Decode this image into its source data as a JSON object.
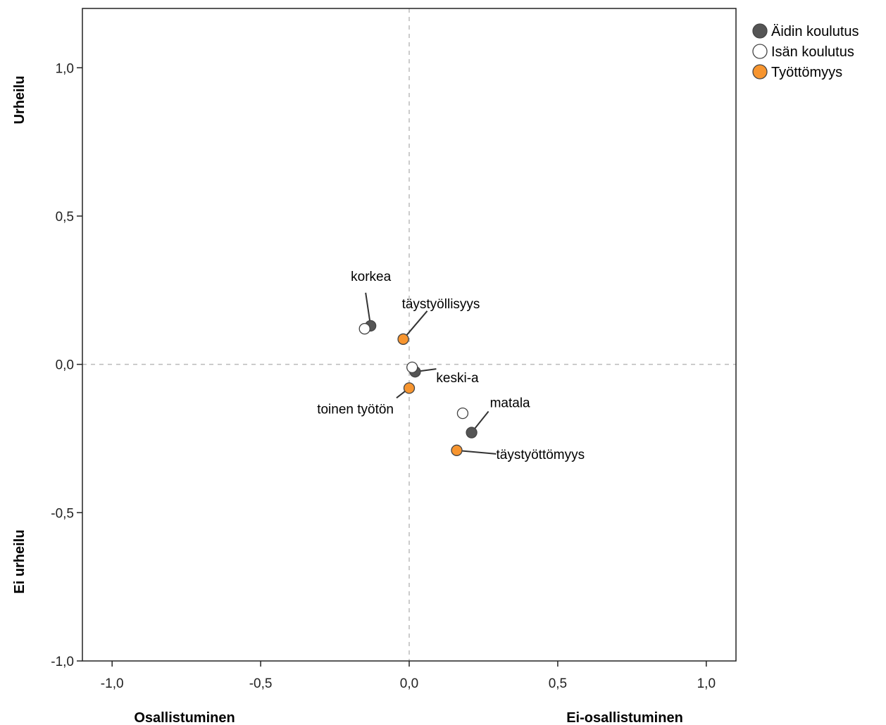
{
  "chart_data": {
    "type": "scatter",
    "xlim": [
      -1.1,
      1.1
    ],
    "ylim": [
      -1.0,
      1.2
    ],
    "x_ticks": [
      -1.0,
      -0.5,
      0.0,
      0.5,
      1.0
    ],
    "y_ticks": [
      -1.0,
      -0.5,
      0.0,
      0.5,
      1.0
    ],
    "x_tick_labels": [
      "-1,0",
      "-0,5",
      "0,0",
      "0,5",
      "1,0"
    ],
    "y_tick_labels": [
      "-1,0",
      "-0,5",
      "0,0",
      "0,5",
      "1,0"
    ],
    "axis_text": {
      "x_left": "Osallistuminen",
      "x_right": "Ei-osallistuminen",
      "y_top": "Urheilu",
      "y_bottom": "Ei urheilu"
    },
    "reference_lines": {
      "x": 0.0,
      "y": 0.0,
      "style": "dashed"
    },
    "legend_position": "top-right",
    "series": [
      {
        "name": "Äidin koulutus",
        "color": "#555555",
        "points": [
          {
            "label": "korkea",
            "x": -0.13,
            "y": 0.13
          },
          {
            "label": "keski-a",
            "x": 0.02,
            "y": -0.025
          },
          {
            "label": "matala",
            "x": 0.21,
            "y": -0.23
          }
        ]
      },
      {
        "name": "Isän koulutus",
        "color": "#ffffff",
        "points": [
          {
            "label": "",
            "x": -0.15,
            "y": 0.12
          },
          {
            "label": "",
            "x": 0.01,
            "y": -0.01
          },
          {
            "label": "",
            "x": 0.18,
            "y": -0.165
          }
        ]
      },
      {
        "name": "Työttömyys",
        "color": "#f7952f",
        "points": [
          {
            "label": "täystyöllisyys",
            "x": -0.02,
            "y": 0.085
          },
          {
            "label": "toinen työtön",
            "x": 0.0,
            "y": -0.08
          },
          {
            "label": "täystyöttömyys",
            "x": 0.16,
            "y": -0.29
          }
        ]
      }
    ]
  }
}
